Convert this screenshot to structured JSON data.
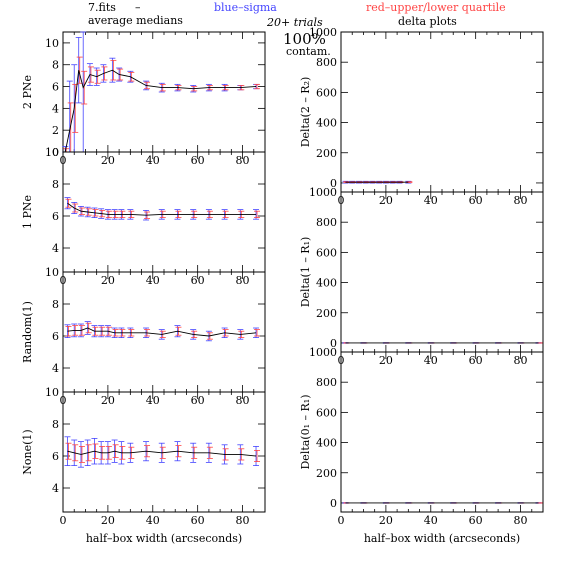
{
  "header": {
    "file": "7.fits",
    "dash": "–",
    "blue": "blue–sigma",
    "red": "red–upper/lower quartile",
    "title_left": "average medians",
    "trials": "20+ trials",
    "title_right": "delta plots",
    "contam_pct": "100%",
    "contam_word": "contam.",
    "blue_color": "#4444ff",
    "red_color": "#ff4444"
  },
  "chart_data": [
    {
      "type": "line",
      "ylabel": "2 PNe",
      "xlim": [
        0,
        90
      ],
      "ylim": [
        0,
        11
      ],
      "xticks": [
        "0",
        "20",
        "40",
        "60",
        "80"
      ],
      "yticks": [
        "0",
        "2",
        "4",
        "6",
        "8",
        "10"
      ],
      "x": [
        1,
        3,
        5,
        7,
        9,
        12,
        15,
        18,
        22,
        25,
        30,
        37,
        44,
        51,
        58,
        65,
        72,
        79,
        86
      ],
      "y": [
        0,
        2,
        4,
        7.5,
        5.9,
        7.1,
        6.9,
        7.2,
        7.5,
        7.1,
        6.9,
        6.1,
        5.9,
        5.9,
        5.8,
        5.9,
        5.9,
        5.9,
        6.0
      ],
      "sigma": [
        0.5,
        4.5,
        4,
        3,
        6,
        1,
        0.8,
        0.8,
        1.1,
        0.6,
        0.5,
        0.4,
        0.4,
        0.3,
        0.3,
        0.3,
        0.3,
        0.2,
        0.2
      ],
      "quartile": [
        0.3,
        2.5,
        2.2,
        1.2,
        1.5,
        0.7,
        0.6,
        0.6,
        0.9,
        0.5,
        0.4,
        0.3,
        0.3,
        0.2,
        0.2,
        0.2,
        0.2,
        0.2,
        0.2
      ]
    },
    {
      "type": "line",
      "ylabel": "1 PNe",
      "xlim": [
        0,
        90
      ],
      "ylim": [
        2.5,
        10
      ],
      "xticks": [
        "0",
        "20",
        "40",
        "60",
        "80"
      ],
      "yticks": [
        "4",
        "6",
        "8",
        "10"
      ],
      "x": [
        2,
        5,
        8,
        11,
        14,
        17,
        20,
        23,
        26,
        30,
        37,
        44,
        51,
        58,
        65,
        72,
        79,
        86
      ],
      "y": [
        6.8,
        6.5,
        6.3,
        6.25,
        6.2,
        6.15,
        6.1,
        6.1,
        6.1,
        6.1,
        6.05,
        6.1,
        6.1,
        6.1,
        6.1,
        6.1,
        6.1,
        6.1
      ],
      "sigma": [
        0.35,
        0.35,
        0.3,
        0.3,
        0.3,
        0.3,
        0.3,
        0.3,
        0.3,
        0.3,
        0.3,
        0.3,
        0.3,
        0.3,
        0.3,
        0.3,
        0.3,
        0.3
      ],
      "quartile": [
        0.25,
        0.25,
        0.2,
        0.2,
        0.2,
        0.2,
        0.2,
        0.2,
        0.2,
        0.2,
        0.2,
        0.2,
        0.2,
        0.2,
        0.2,
        0.2,
        0.2,
        0.2
      ]
    },
    {
      "type": "line",
      "ylabel": "Random(1)",
      "xlim": [
        0,
        90
      ],
      "ylim": [
        2.5,
        10
      ],
      "xticks": [
        "0",
        "20",
        "40",
        "60",
        "80"
      ],
      "yticks": [
        "4",
        "6",
        "8",
        "10"
      ],
      "x": [
        2,
        5,
        8,
        11,
        14,
        17,
        20,
        23,
        26,
        30,
        37,
        44,
        51,
        58,
        65,
        72,
        79,
        86
      ],
      "y": [
        6.3,
        6.35,
        6.35,
        6.5,
        6.3,
        6.3,
        6.3,
        6.2,
        6.2,
        6.2,
        6.2,
        6.1,
        6.3,
        6.1,
        6.0,
        6.2,
        6.1,
        6.2
      ],
      "sigma": [
        0.4,
        0.4,
        0.4,
        0.4,
        0.35,
        0.35,
        0.35,
        0.3,
        0.3,
        0.3,
        0.3,
        0.3,
        0.35,
        0.3,
        0.3,
        0.3,
        0.3,
        0.3
      ],
      "quartile": [
        0.3,
        0.3,
        0.3,
        0.3,
        0.25,
        0.25,
        0.25,
        0.2,
        0.2,
        0.2,
        0.2,
        0.2,
        0.25,
        0.2,
        0.2,
        0.2,
        0.2,
        0.2
      ]
    },
    {
      "type": "line",
      "ylabel": "None(1)",
      "xlabel": "half–box width (arcseconds)",
      "xlim": [
        0,
        90
      ],
      "ylim": [
        2.5,
        10
      ],
      "xticks": [
        "0",
        "20",
        "40",
        "60",
        "80"
      ],
      "yticks": [
        "4",
        "6",
        "8",
        "10"
      ],
      "x": [
        2,
        5,
        8,
        11,
        14,
        17,
        20,
        23,
        26,
        30,
        37,
        44,
        51,
        58,
        65,
        72,
        79,
        86
      ],
      "y": [
        6.3,
        6.2,
        6.1,
        6.2,
        6.3,
        6.2,
        6.2,
        6.3,
        6.2,
        6.2,
        6.3,
        6.2,
        6.3,
        6.2,
        6.2,
        6.1,
        6.1,
        6.0
      ],
      "sigma": [
        0.9,
        0.8,
        0.8,
        0.8,
        0.8,
        0.7,
        0.7,
        0.7,
        0.7,
        0.6,
        0.6,
        0.6,
        0.6,
        0.6,
        0.6,
        0.6,
        0.6,
        0.6
      ],
      "quartile": [
        0.5,
        0.5,
        0.5,
        0.5,
        0.45,
        0.4,
        0.4,
        0.4,
        0.4,
        0.35,
        0.35,
        0.35,
        0.35,
        0.35,
        0.35,
        0.35,
        0.35,
        0.35
      ]
    },
    {
      "type": "line",
      "ylabel": "Delta(2 – R₂)",
      "xlim": [
        0,
        90
      ],
      "ylim": [
        -60,
        1000
      ],
      "xticks": [
        "0",
        "20",
        "40",
        "60",
        "80"
      ],
      "yticks": [
        "0",
        "200",
        "400",
        "600",
        "800",
        "1000"
      ],
      "x": [
        2,
        5,
        8,
        11,
        14,
        17,
        20,
        23,
        26,
        30
      ],
      "y": [
        5,
        5,
        5,
        5,
        5,
        5,
        5,
        5,
        5,
        5
      ],
      "sigma": [
        6,
        6,
        6,
        6,
        6,
        6,
        6,
        6,
        6,
        6
      ],
      "quartile": [
        3,
        3,
        3,
        3,
        3,
        3,
        3,
        3,
        3,
        3
      ]
    },
    {
      "type": "line",
      "ylabel": "Delta(1 – R₁)",
      "xlim": [
        0,
        90
      ],
      "ylim": [
        -60,
        1000
      ],
      "xticks": [
        "0",
        "20",
        "40",
        "60",
        "80"
      ],
      "yticks": [
        "0",
        "200",
        "400",
        "600",
        "800",
        "1000"
      ],
      "x": [
        2,
        10,
        20,
        30,
        40,
        50,
        60,
        70,
        80,
        88
      ],
      "y": [
        0,
        0,
        0,
        0,
        0,
        0,
        0,
        0,
        0,
        0
      ],
      "sigma": [
        2,
        2,
        2,
        2,
        2,
        2,
        2,
        2,
        2,
        2
      ],
      "quartile": [
        1,
        1,
        1,
        1,
        1,
        1,
        1,
        1,
        1,
        1
      ]
    },
    {
      "type": "line",
      "ylabel": "Delta(0₁ – R₁)",
      "xlabel": "half–box width (arcseconds)",
      "xlim": [
        0,
        90
      ],
      "ylim": [
        -60,
        1000
      ],
      "xticks": [
        "0",
        "20",
        "40",
        "60",
        "80"
      ],
      "yticks": [
        "0",
        "200",
        "400",
        "600",
        "800",
        "1000"
      ],
      "x": [
        2,
        10,
        20,
        30,
        40,
        50,
        60,
        70,
        80,
        88
      ],
      "y": [
        0,
        0,
        0,
        0,
        0,
        0,
        0,
        0,
        0,
        0
      ],
      "sigma": [
        2,
        2,
        2,
        2,
        2,
        2,
        2,
        2,
        2,
        2
      ],
      "quartile": [
        1,
        1,
        1,
        1,
        1,
        1,
        1,
        1,
        1,
        1
      ]
    }
  ]
}
